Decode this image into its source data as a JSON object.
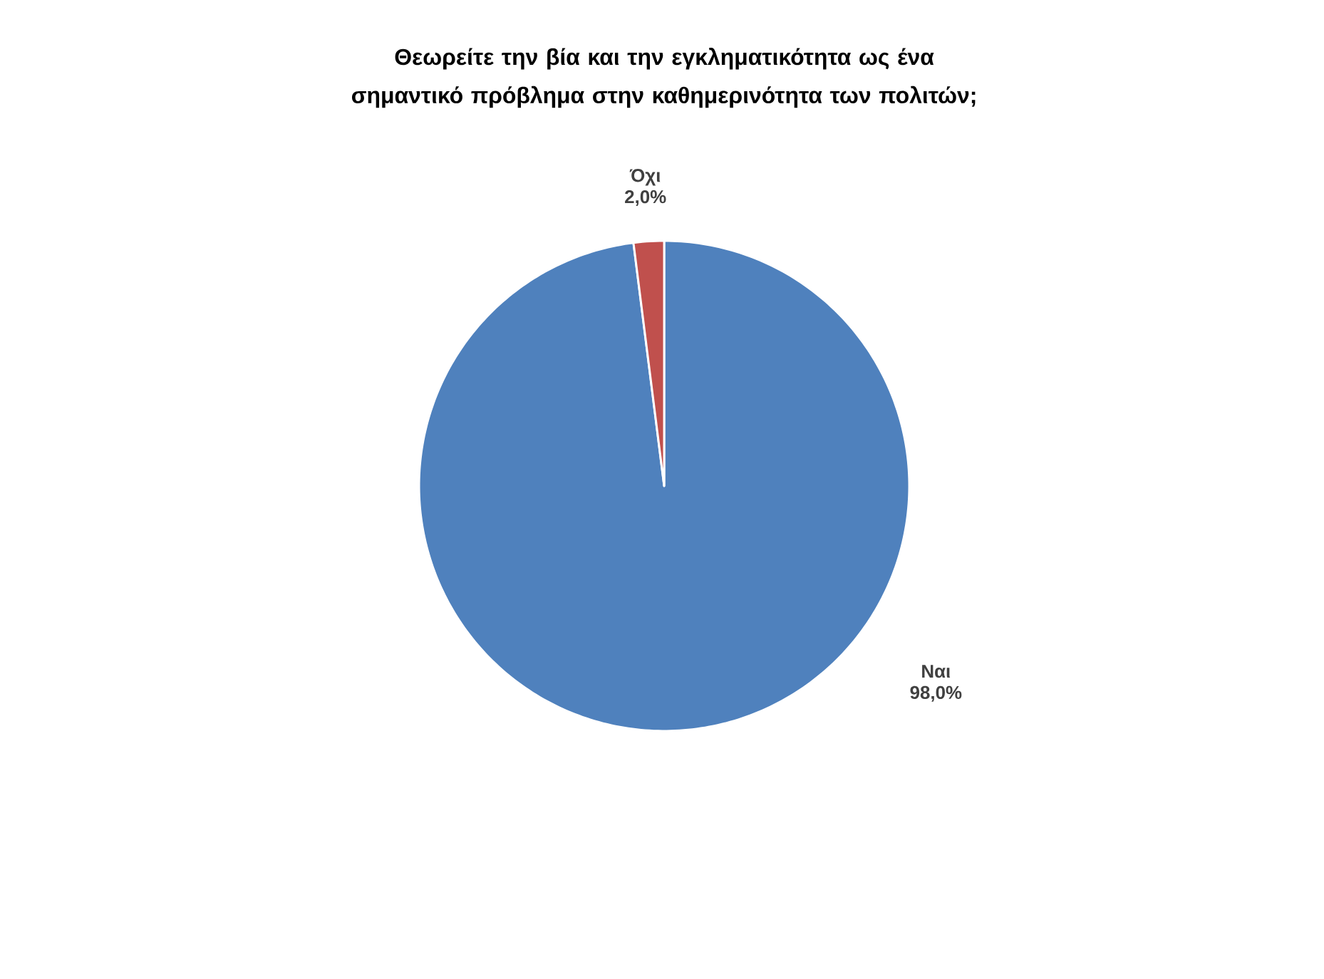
{
  "chart_data": {
    "type": "pie",
    "title": "Θεωρείτε την βία και την εγκληματικότητα ως ένα σημαντικό πρόβλημα στην καθημερινότητα των πολιτών;",
    "categories": [
      "Ναι",
      "Όχι"
    ],
    "values": [
      98.0,
      2.0
    ],
    "colors": [
      "#4f81bd",
      "#c0504d"
    ],
    "value_labels": [
      "98,0%",
      "2,0%"
    ]
  }
}
